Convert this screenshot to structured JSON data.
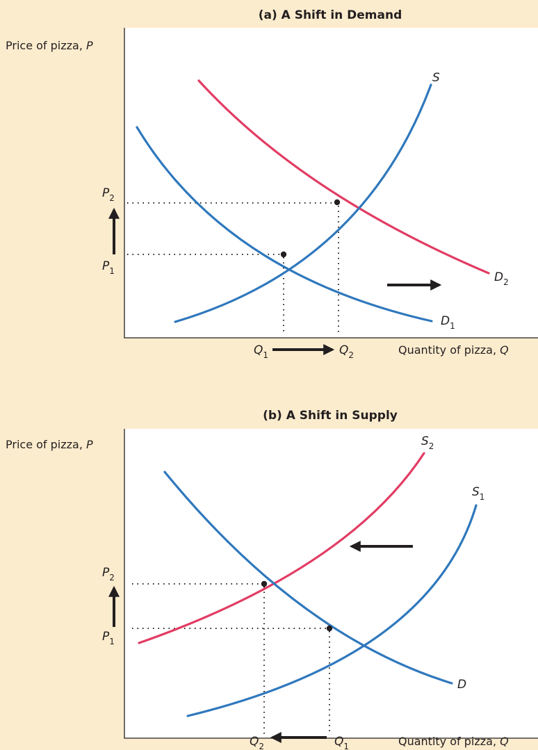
{
  "colors": {
    "background": "#fcecce",
    "plot_area": "#ffffff",
    "original_curve": "#2f78bd",
    "shifted_curve": "#e23c63",
    "text": "#231f20"
  },
  "panel_a": {
    "title": "(a) A Shift in Demand",
    "y_axis_label": "Price of pizza, ",
    "y_axis_var": "P",
    "x_axis_label": "Quantity of pizza, ",
    "x_axis_var": "Q",
    "labels": {
      "S": "S",
      "D2": "D",
      "D2_sub": "2",
      "D1": "D",
      "D1_sub": "1",
      "P2": "P",
      "P2_sub": "2",
      "P1": "P",
      "P1_sub": "1",
      "Q1": "Q",
      "Q1_sub": "1",
      "Q2": "Q",
      "Q2_sub": "2"
    },
    "arrow_shift": "right",
    "arrow_price": "up",
    "arrow_quantity": "right"
  },
  "panel_b": {
    "title": "(b) A Shift in Supply",
    "y_axis_label": "Price of pizza, ",
    "y_axis_var": "P",
    "x_axis_label": "Quantity of pizza, ",
    "x_axis_var": "Q",
    "labels": {
      "S2": "S",
      "S2_sub": "2",
      "S1": "S",
      "S1_sub": "1",
      "D": "D",
      "P2": "P",
      "P2_sub": "2",
      "P1": "P",
      "P1_sub": "1",
      "Q2": "Q",
      "Q2_sub": "2",
      "Q1": "Q",
      "Q1_sub": "1"
    },
    "arrow_shift": "left",
    "arrow_price": "up",
    "arrow_quantity": "left"
  }
}
